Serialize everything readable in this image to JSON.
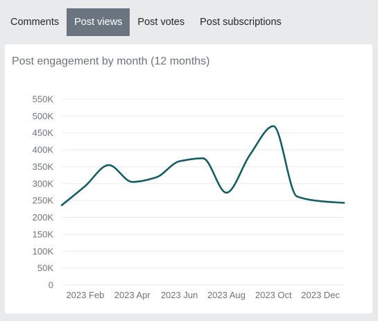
{
  "tabs": [
    {
      "label": "Comments",
      "active": false
    },
    {
      "label": "Post views",
      "active": true
    },
    {
      "label": "Post votes",
      "active": false
    },
    {
      "label": "Post subscriptions",
      "active": false
    }
  ],
  "card": {
    "title": "Post engagement by month (12 months)"
  },
  "colors": {
    "line": "#155d61",
    "grid": "#e9ebed",
    "tab_active_bg": "#6b7580"
  },
  "chart_data": {
    "type": "line",
    "x": [
      "2023 Jan",
      "2023 Feb",
      "2023 Mar",
      "2023 Apr",
      "2023 May",
      "2023 Jun",
      "2023 Jul",
      "2023 Aug",
      "2023 Sep",
      "2023 Oct",
      "2023 Nov",
      "2023 Dec",
      "2024 Jan"
    ],
    "x_tick_labels": [
      "2023 Feb",
      "2023 Apr",
      "2023 Jun",
      "2023 Aug",
      "2023 Oct",
      "2023 Dec"
    ],
    "series": [
      {
        "values": [
          236000,
          293000,
          355000,
          305000,
          318000,
          366000,
          375000,
          273000,
          385000,
          470000,
          262000,
          248000,
          243000
        ]
      }
    ],
    "ylim": [
      0,
      550000
    ],
    "y_ticks": [
      0,
      50000,
      100000,
      150000,
      200000,
      250000,
      300000,
      350000,
      400000,
      450000,
      500000,
      550000
    ],
    "y_tick_labels": [
      "0",
      "50K",
      "100K",
      "150K",
      "200K",
      "250K",
      "300K",
      "350K",
      "400K",
      "450K",
      "500K",
      "550K"
    ],
    "grid": true,
    "legend": "none"
  }
}
